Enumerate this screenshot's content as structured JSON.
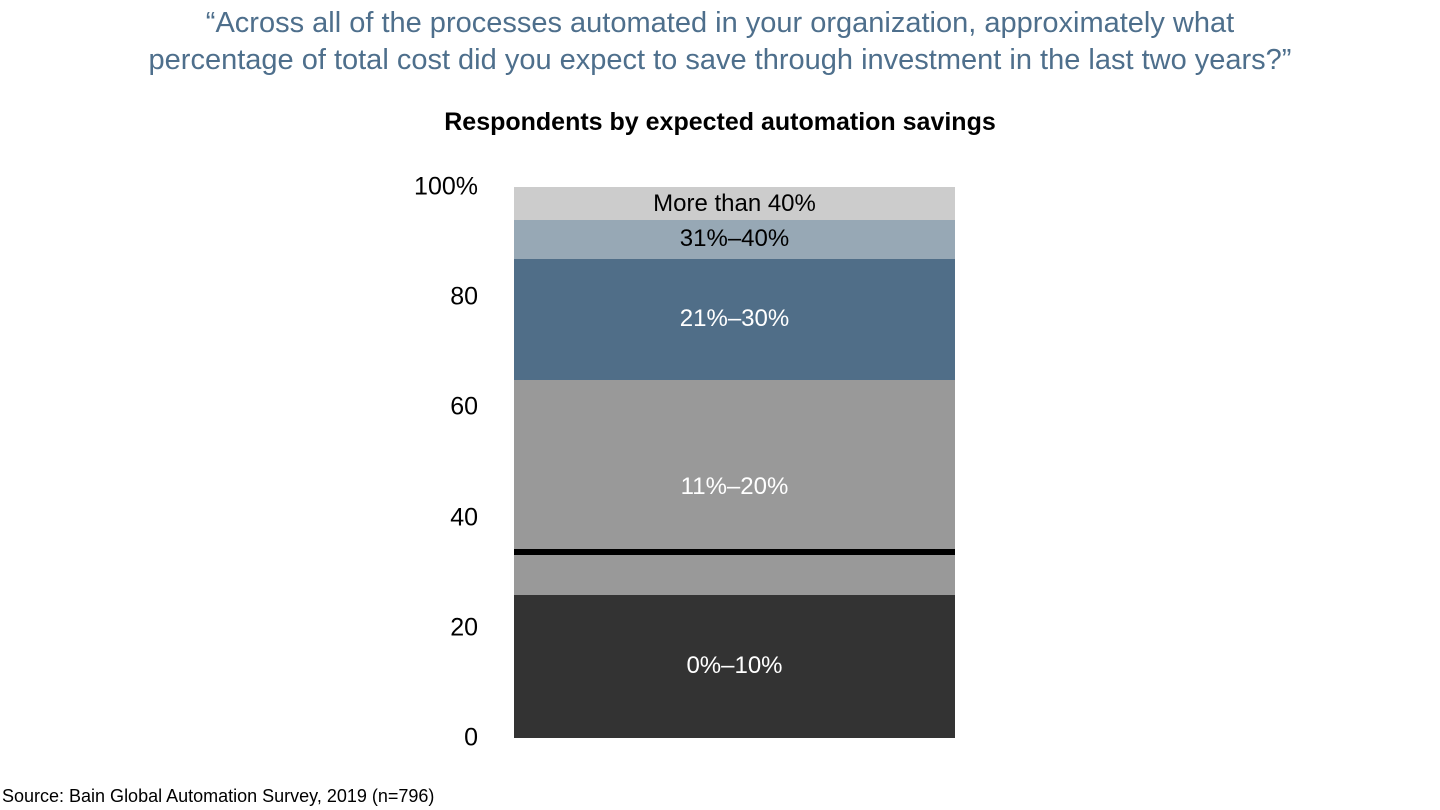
{
  "colors": {
    "quote_text": "#4e6f8c",
    "title_text": "#000000",
    "axis_text": "#000000",
    "source_text": "#000000",
    "baseline": "#000000",
    "background": "#ffffff"
  },
  "quote": {
    "line1": "“Across all of the processes automated in your organization, approximately what",
    "line2": "percentage of total cost did you expect to save through investment in the last two years?”"
  },
  "chart_data": {
    "type": "bar",
    "variant": "single-stacked-column-100pct",
    "title": "Respondents by expected automation savings",
    "xlabel": "",
    "ylabel": "",
    "ylim": [
      0,
      100
    ],
    "grid": false,
    "legend_position": "labels-inside-segments",
    "y_ticks": [
      {
        "label": "100%",
        "value": 100
      },
      {
        "label": "80",
        "value": 80
      },
      {
        "label": "60",
        "value": 60
      },
      {
        "label": "40",
        "value": 40
      },
      {
        "label": "20",
        "value": 20
      },
      {
        "label": "0",
        "value": 0
      }
    ],
    "segments_order": "top-to-bottom",
    "segments": [
      {
        "label": "More than 40%",
        "value": 6,
        "color": "#cccccc",
        "label_color": "#000000"
      },
      {
        "label": "31%–40%",
        "value": 7,
        "color": "#97a8b5",
        "label_color": "#000000"
      },
      {
        "label": "21%–30%",
        "value": 22,
        "color": "#506e88",
        "label_color": "#ffffff"
      },
      {
        "label": "11%–20%",
        "value": 39,
        "color": "#999999",
        "label_color": "#ffffff"
      },
      {
        "label": "0%–10%",
        "value": 26,
        "color": "#333333",
        "label_color": "#ffffff"
      }
    ],
    "baseline_color": "#000000"
  },
  "source": {
    "text": "Source: Bain Global Automation Survey, 2019 (n=796)"
  }
}
